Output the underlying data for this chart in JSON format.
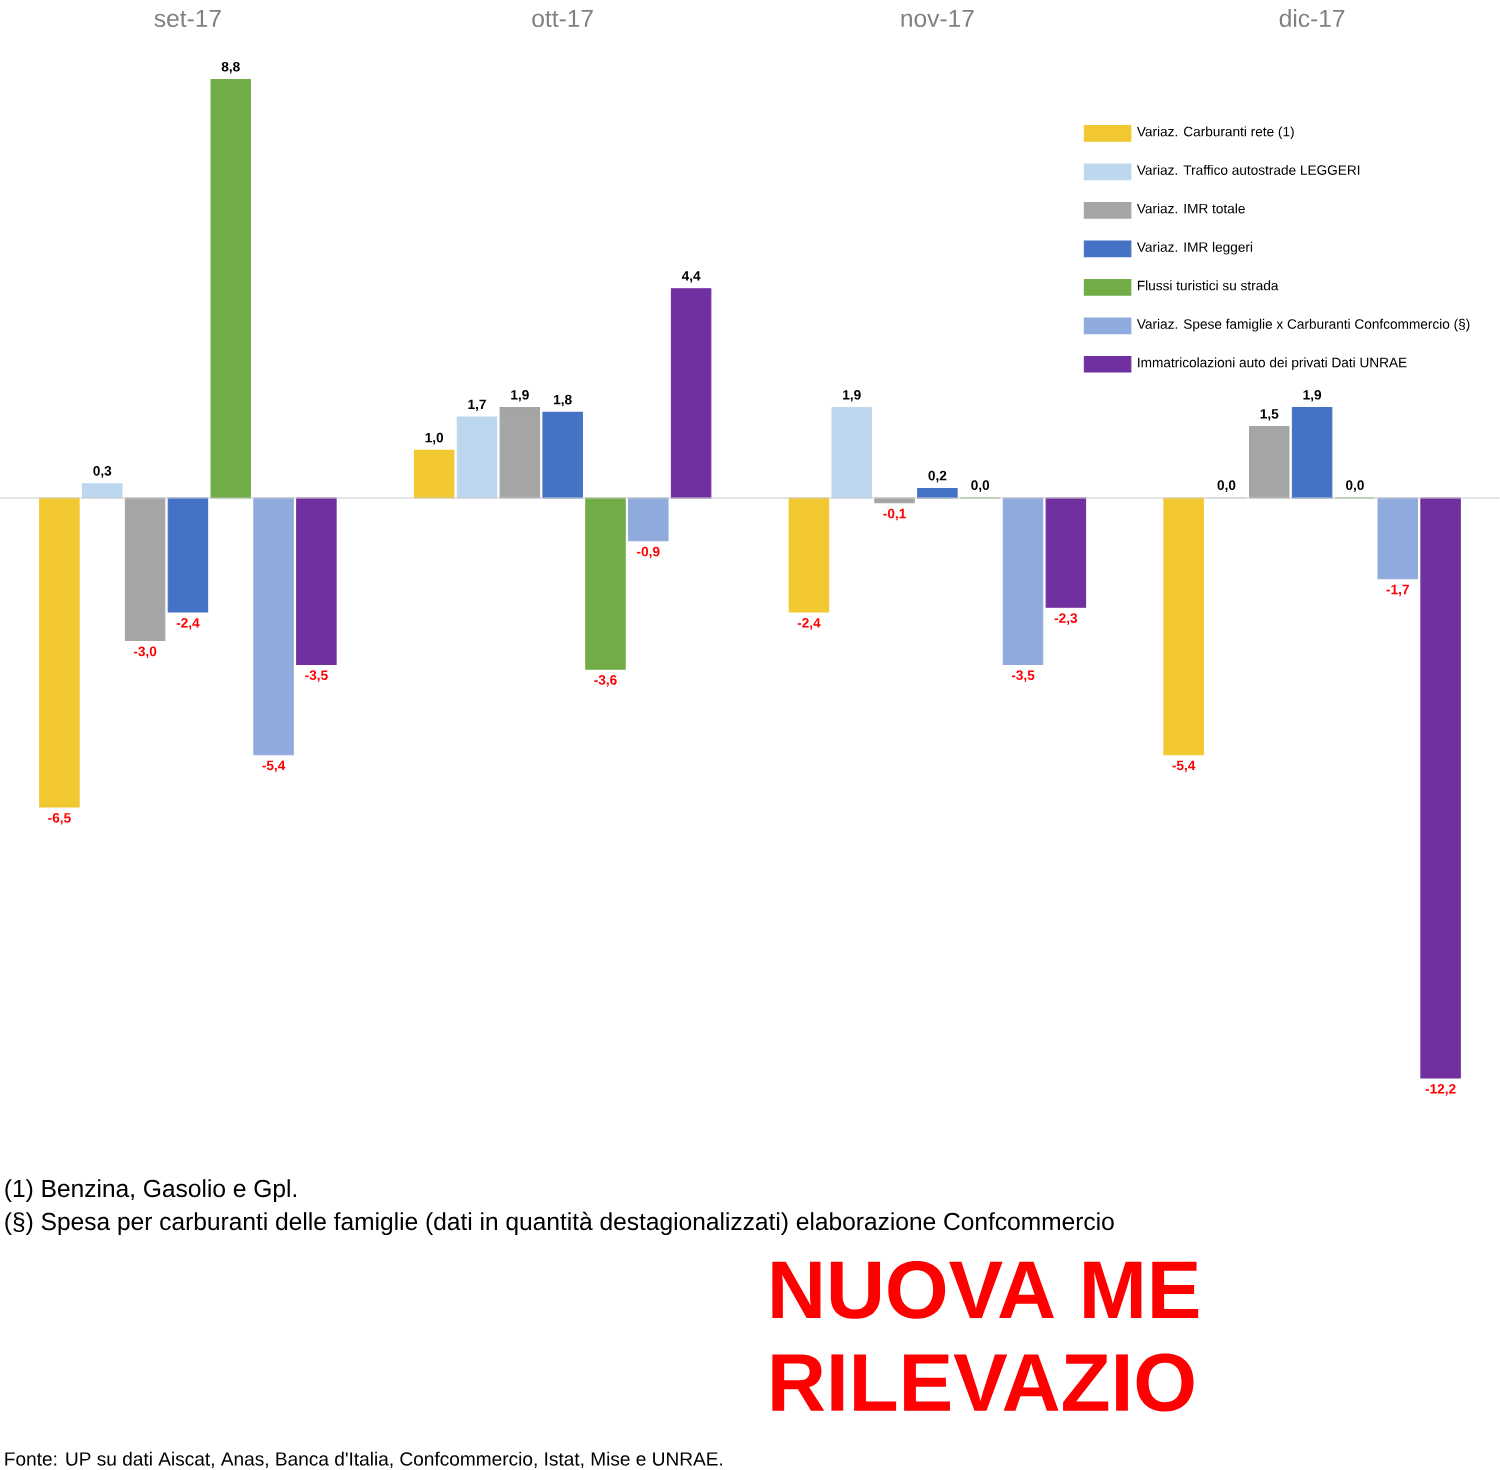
{
  "chart_data": {
    "type": "bar",
    "categories": [
      "set-17",
      "ott-17",
      "nov-17",
      "dic-17"
    ],
    "series": [
      {
        "name": "Variaz. Carburanti rete (1)",
        "color": "#f2c830",
        "values": [
          -6.5,
          1.0,
          -2.4,
          -5.4
        ],
        "value_labels": [
          "-6,5",
          "1,0",
          "-2,4",
          "-5,4"
        ]
      },
      {
        "name": "Variaz. Traffico autostrade LEGGERI",
        "color": "#bdd7ee",
        "values": [
          0.3,
          1.7,
          1.9,
          0.0
        ],
        "value_labels": [
          "0,3",
          "1,7",
          "1,9",
          "0,0"
        ]
      },
      {
        "name": "Variaz. IMR totale",
        "color": "#a5a5a5",
        "values": [
          -3.0,
          1.9,
          -0.1,
          1.5
        ],
        "value_labels": [
          "-3,0",
          "1,9",
          "-0,1",
          "1,5"
        ]
      },
      {
        "name": "Variaz. IMR leggeri",
        "color": "#4472c4",
        "values": [
          -2.4,
          1.8,
          0.2,
          1.9
        ],
        "value_labels": [
          "-2,4",
          "1,8",
          "0,2",
          "1,9"
        ]
      },
      {
        "name": "Flussi turistici su strada",
        "color": "#70ad47",
        "values": [
          8.8,
          -3.6,
          0.0,
          0.0
        ],
        "value_labels": [
          "8,8",
          "-3,6",
          "0,0",
          "0,0"
        ]
      },
      {
        "name": "Variaz. Spese famiglie x  Carburanti Confcommercio (§)",
        "color": "#8faadc",
        "values": [
          -5.4,
          -0.9,
          -3.5,
          -1.7
        ],
        "value_labels": [
          "-5,4",
          "-0,9",
          "-3,5",
          "-1,7"
        ]
      },
      {
        "name": "Immatricolazioni auto dei privati Dati UNRAE",
        "color": "#7030a0",
        "values": [
          -3.5,
          4.4,
          -2.3,
          -12.2
        ],
        "value_labels": [
          "-3,5",
          "4,4",
          "-2,3",
          "-12,2"
        ]
      }
    ],
    "legend": "top right",
    "annotations": [
      "(1) Benzina, Gasolio e Gpl.",
      "(§) Spesa per carburanti delle famiglie (dati in quantità destagionalizzati) elaborazione Confcommercio",
      "NUOVA ME",
      "RILEVAZIO",
      "Fonte: UP su dati Aiscat, Anas, Banca d'Italia, Confcommercio, Istat, Mise e UNRAE."
    ]
  }
}
